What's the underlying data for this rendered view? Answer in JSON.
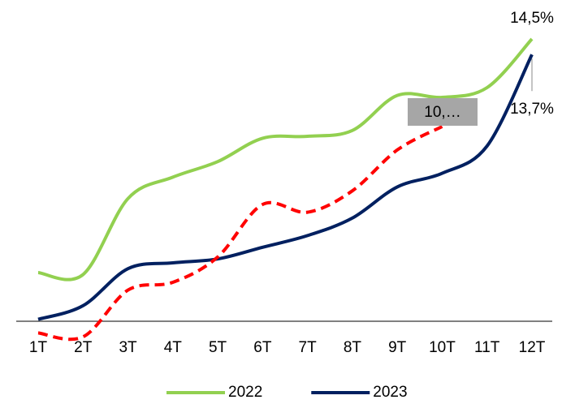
{
  "chart_data": {
    "type": "line",
    "categories": [
      "1T",
      "2T",
      "3T",
      "4T",
      "5T",
      "6T",
      "7T",
      "8T",
      "9T",
      "10T",
      "11T",
      "12T"
    ],
    "series": [
      {
        "name": "2022",
        "color": "#92d050",
        "values": [
          2.5,
          2.4,
          6.3,
          7.4,
          8.2,
          9.4,
          9.5,
          9.8,
          11.6,
          11.5,
          12.0,
          14.5
        ],
        "value_labels": [
          null,
          null,
          null,
          null,
          null,
          null,
          null,
          null,
          null,
          null,
          null,
          "14,5%"
        ]
      },
      {
        "name": "2023",
        "color": "#002060",
        "values": [
          0.1,
          0.8,
          2.7,
          3.0,
          3.2,
          3.8,
          4.4,
          5.3,
          6.9,
          7.6,
          9.0,
          13.7
        ],
        "value_labels": [
          null,
          null,
          null,
          null,
          null,
          null,
          null,
          null,
          null,
          null,
          null,
          "13,7%"
        ]
      },
      {
        "color": "#ff0000",
        "dashed": true,
        "values": [
          -0.6,
          -0.8,
          1.6,
          2.0,
          3.3,
          6.0,
          5.6,
          6.7,
          8.8,
          10.0,
          null,
          null
        ],
        "value_labels": [
          null,
          null,
          null,
          null,
          null,
          null,
          null,
          null,
          null,
          "10,…",
          null,
          null
        ]
      }
    ],
    "ylim": [
      -1,
      15
    ],
    "legend": "bottom"
  }
}
